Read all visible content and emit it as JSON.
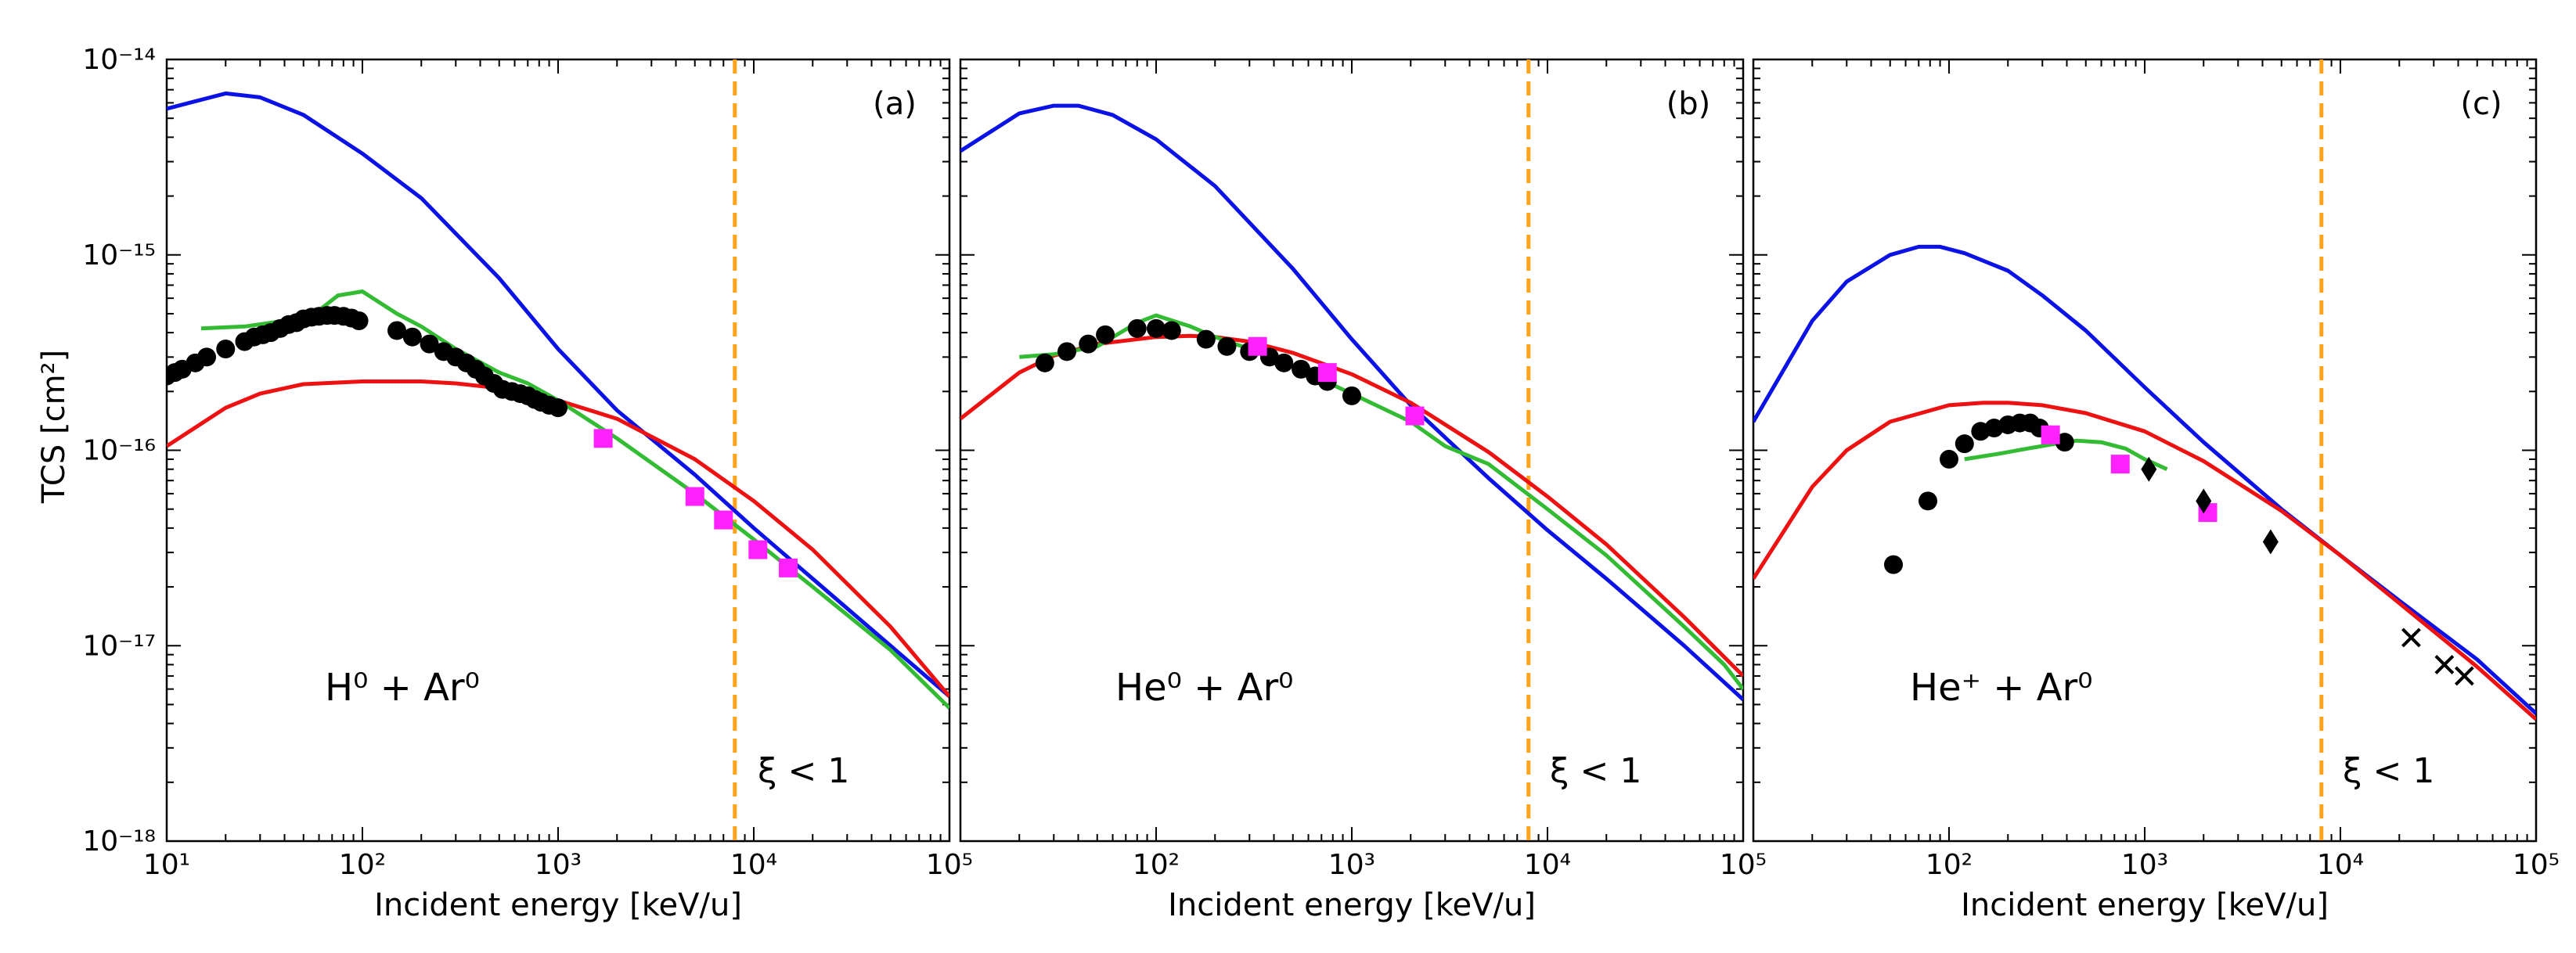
{
  "figure": {
    "ylabel": "TCS [cm²]",
    "xlabel": "Incident energy [keV/u]",
    "colors": {
      "blue": "#0b12e6",
      "red": "#ee1111",
      "green": "#33bb33",
      "magenta": "#ff22ff",
      "orange": "#ffa31a",
      "black": "#000000"
    }
  },
  "chart_data": [
    {
      "type": "line",
      "panel_label": "(a)",
      "system_label": "H⁰ + Ar⁰",
      "threshold_label": "ξ < 1",
      "xlabel": "Incident energy [keV/u]",
      "ylabel": "TCS [cm²]",
      "xscale": "log",
      "yscale": "log",
      "xlim": [
        10,
        100000
      ],
      "ylim": [
        1e-18,
        1e-14
      ],
      "xticks": [
        "10¹",
        "10²",
        "10³",
        "10⁴",
        "10⁵"
      ],
      "yticks": [
        "10⁻¹⁸",
        "10⁻¹⁷",
        "10⁻¹⁶",
        "10⁻¹⁵",
        "10⁻¹⁴"
      ],
      "vline_x": 8000,
      "series": [
        {
          "name": "blue curve",
          "kind": "line",
          "color": "blue",
          "x": [
            10,
            20,
            30,
            50,
            100,
            200,
            500,
            1000,
            2000,
            5000,
            10000,
            20000,
            50000,
            100000
          ],
          "y": [
            5.6e-15,
            6.7e-15,
            6.4e-15,
            5.2e-15,
            3.3e-15,
            1.95e-15,
            7.6e-16,
            3.3e-16,
            1.6e-16,
            7.5e-17,
            4e-17,
            2.2e-17,
            1e-17,
            5.5e-18
          ]
        },
        {
          "name": "red curve",
          "kind": "line",
          "color": "red",
          "x": [
            10,
            20,
            30,
            50,
            100,
            200,
            300,
            500,
            1000,
            2000,
            5000,
            10000,
            20000,
            50000,
            100000
          ],
          "y": [
            1.05e-16,
            1.65e-16,
            1.95e-16,
            2.18e-16,
            2.25e-16,
            2.25e-16,
            2.2e-16,
            2.08e-16,
            1.8e-16,
            1.45e-16,
            9e-17,
            5.5e-17,
            3.1e-17,
            1.25e-17,
            5.5e-18
          ]
        },
        {
          "name": "green curve",
          "kind": "line",
          "color": "green",
          "x": [
            15,
            25,
            40,
            60,
            75,
            100,
            150,
            200,
            300,
            500,
            700,
            1000,
            2000,
            5000,
            10000,
            20000,
            50000,
            100000
          ],
          "y": [
            4.2e-16,
            4.3e-16,
            4.6e-16,
            5.2e-16,
            6.2e-16,
            6.5e-16,
            5e-16,
            4.3e-16,
            3.3e-16,
            2.5e-16,
            2.2e-16,
            1.8e-16,
            1.15e-16,
            6e-17,
            3.5e-17,
            2e-17,
            9.5e-18,
            4.8e-18
          ]
        },
        {
          "name": "black circles",
          "kind": "scatter",
          "marker": "circle",
          "color": "black",
          "x": [
            10,
            11,
            12,
            14,
            16,
            20,
            25,
            28,
            31,
            34,
            38,
            42,
            46,
            50,
            55,
            60,
            66,
            72,
            80,
            88,
            96,
            150,
            180,
            220,
            260,
            300,
            340,
            380,
            420,
            470,
            520,
            580,
            640,
            700,
            760,
            820,
            900,
            1000
          ],
          "y": [
            2.4e-16,
            2.5e-16,
            2.6e-16,
            2.8e-16,
            3e-16,
            3.3e-16,
            3.6e-16,
            3.8e-16,
            3.9e-16,
            4e-16,
            4.2e-16,
            4.4e-16,
            4.5e-16,
            4.7e-16,
            4.8e-16,
            4.85e-16,
            4.9e-16,
            4.9e-16,
            4.85e-16,
            4.75e-16,
            4.6e-16,
            4.1e-16,
            3.8e-16,
            3.5e-16,
            3.2e-16,
            3e-16,
            2.8e-16,
            2.6e-16,
            2.4e-16,
            2.2e-16,
            2.05e-16,
            2e-16,
            1.95e-16,
            1.9e-16,
            1.82e-16,
            1.76e-16,
            1.7e-16,
            1.65e-16
          ]
        },
        {
          "name": "magenta squares",
          "kind": "scatter",
          "marker": "square",
          "color": "magenta",
          "x": [
            1700,
            5000,
            7000,
            10500,
            15000
          ],
          "y": [
            1.15e-16,
            5.8e-17,
            4.4e-17,
            3.1e-17,
            2.5e-17
          ]
        }
      ]
    },
    {
      "type": "line",
      "panel_label": "(b)",
      "system_label": "He⁰ + Ar⁰",
      "threshold_label": "ξ < 1",
      "xlabel": "Incident energy [keV/u]",
      "xscale": "log",
      "yscale": "log",
      "xlim": [
        10,
        100000
      ],
      "ylim": [
        1e-18,
        1e-14
      ],
      "xticks": [
        "10²",
        "10³",
        "10⁴",
        "10⁵"
      ],
      "vline_x": 8000,
      "series": [
        {
          "name": "blue curve",
          "kind": "line",
          "color": "blue",
          "x": [
            10,
            20,
            30,
            40,
            60,
            100,
            200,
            500,
            1000,
            2000,
            5000,
            10000,
            20000,
            50000,
            100000
          ],
          "y": [
            3.4e-15,
            5.3e-15,
            5.8e-15,
            5.8e-15,
            5.2e-15,
            3.9e-15,
            2.25e-15,
            8.5e-16,
            3.7e-16,
            1.7e-16,
            7.2e-17,
            3.9e-17,
            2.2e-17,
            1e-17,
            5.3e-18
          ]
        },
        {
          "name": "red curve",
          "kind": "line",
          "color": "red",
          "x": [
            10,
            20,
            30,
            50,
            100,
            150,
            200,
            300,
            500,
            1000,
            2000,
            5000,
            10000,
            20000,
            50000,
            100000
          ],
          "y": [
            1.45e-16,
            2.5e-16,
            3.05e-16,
            3.5e-16,
            3.8e-16,
            3.85e-16,
            3.8e-16,
            3.6e-16,
            3.15e-16,
            2.45e-16,
            1.75e-16,
            9.8e-17,
            5.8e-17,
            3.3e-17,
            1.4e-17,
            7e-18
          ]
        },
        {
          "name": "green curve",
          "kind": "line",
          "color": "green",
          "x": [
            20,
            30,
            50,
            80,
            100,
            150,
            200,
            300,
            500,
            700,
            1000,
            2000,
            3000,
            5000,
            10000,
            20000,
            50000,
            80000,
            100000
          ],
          "y": [
            3e-16,
            3.1e-16,
            3.4e-16,
            4.5e-16,
            4.9e-16,
            4.3e-16,
            3.8e-16,
            3.3e-16,
            2.7e-16,
            2.3e-16,
            1.95e-16,
            1.4e-16,
            1.05e-16,
            8.5e-17,
            5e-17,
            2.9e-17,
            1.25e-17,
            8e-18,
            6e-18
          ]
        },
        {
          "name": "black circles",
          "kind": "scatter",
          "marker": "circle",
          "color": "black",
          "x": [
            27,
            35,
            45,
            55,
            80,
            100,
            120,
            180,
            230,
            300,
            380,
            450,
            550,
            650,
            750,
            1000
          ],
          "y": [
            2.8e-16,
            3.2e-16,
            3.5e-16,
            3.9e-16,
            4.2e-16,
            4.2e-16,
            4.1e-16,
            3.7e-16,
            3.4e-16,
            3.2e-16,
            3e-16,
            2.8e-16,
            2.6e-16,
            2.4e-16,
            2.25e-16,
            1.9e-16
          ]
        },
        {
          "name": "magenta squares",
          "kind": "scatter",
          "marker": "square",
          "color": "magenta",
          "x": [
            330,
            750,
            2100
          ],
          "y": [
            3.4e-16,
            2.5e-16,
            1.5e-16
          ]
        }
      ]
    },
    {
      "type": "line",
      "panel_label": "(c)",
      "system_label": "He⁺ + Ar⁰",
      "threshold_label": "ξ < 1",
      "xlabel": "Incident energy [keV/u]",
      "xscale": "log",
      "yscale": "log",
      "xlim": [
        10,
        100000
      ],
      "ylim": [
        1e-18,
        1e-14
      ],
      "xticks": [
        "10²",
        "10³",
        "10⁴",
        "10⁵"
      ],
      "vline_x": 8000,
      "series": [
        {
          "name": "blue curve",
          "kind": "line",
          "color": "blue",
          "x": [
            10,
            20,
            30,
            50,
            70,
            90,
            120,
            200,
            300,
            500,
            1000,
            2000,
            5000,
            10000,
            20000,
            50000,
            100000
          ],
          "y": [
            1.4e-16,
            4.6e-16,
            7.3e-16,
            1e-15,
            1.1e-15,
            1.1e-15,
            1.02e-15,
            8.3e-16,
            6.2e-16,
            4.1e-16,
            2.1e-16,
            1.1e-16,
            5e-17,
            2.9e-17,
            1.7e-17,
            8.5e-18,
            4.5e-18
          ]
        },
        {
          "name": "red curve",
          "kind": "line",
          "color": "red",
          "x": [
            10,
            20,
            30,
            50,
            100,
            150,
            200,
            300,
            500,
            1000,
            2000,
            5000,
            10000,
            20000,
            50000,
            100000
          ],
          "y": [
            2.2e-17,
            6.5e-17,
            1e-16,
            1.4e-16,
            1.7e-16,
            1.75e-16,
            1.75e-16,
            1.7e-16,
            1.55e-16,
            1.25e-16,
            8.8e-17,
            4.9e-17,
            2.9e-17,
            1.65e-17,
            7.8e-18,
            4.2e-18
          ]
        },
        {
          "name": "green curve",
          "kind": "line",
          "color": "green",
          "x": [
            120,
            180,
            250,
            350,
            450,
            600,
            800,
            1000,
            1300
          ],
          "y": [
            9e-17,
            9.6e-17,
            1.02e-16,
            1.08e-16,
            1.12e-16,
            1.1e-16,
            1.02e-16,
            9e-17,
            8e-17
          ]
        },
        {
          "name": "black circles",
          "kind": "scatter",
          "marker": "circle",
          "color": "black",
          "x": [
            52,
            78,
            100,
            120,
            145,
            170,
            200,
            230,
            260,
            290,
            330,
            390
          ],
          "y": [
            2.6e-17,
            5.5e-17,
            9e-17,
            1.08e-16,
            1.25e-16,
            1.3e-16,
            1.35e-16,
            1.38e-16,
            1.38e-16,
            1.3e-16,
            1.2e-16,
            1.1e-16
          ]
        },
        {
          "name": "magenta squares",
          "kind": "scatter",
          "marker": "square",
          "color": "magenta",
          "x": [
            330,
            750,
            2100
          ],
          "y": [
            1.2e-16,
            8.5e-17,
            4.8e-17
          ]
        },
        {
          "name": "black diamonds",
          "kind": "scatter",
          "marker": "diamond",
          "color": "black",
          "x": [
            1050,
            2000,
            4400
          ],
          "y": [
            8e-17,
            5.5e-17,
            3.4e-17
          ]
        },
        {
          "name": "black crosses",
          "kind": "scatter",
          "marker": "cross",
          "color": "black",
          "x": [
            23000,
            34000,
            43000
          ],
          "y": [
            1.1e-17,
            8e-18,
            7e-18
          ]
        }
      ]
    }
  ]
}
